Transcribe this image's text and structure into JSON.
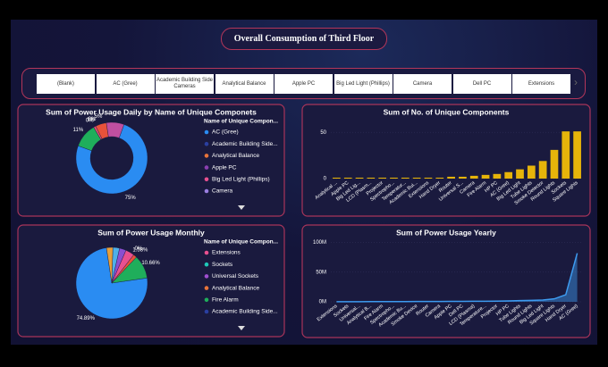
{
  "title": "Overall Consumption of Third Floor",
  "slicer": {
    "items": [
      "(Blank)",
      "AC (Gree)",
      "Academic Building Side Cameras",
      "Analytical Balance",
      "Apple PC",
      "Big Led Light (Phillips)",
      "Camera",
      "Dell PC",
      "Extensions"
    ]
  },
  "chart_data": [
    {
      "type": "donut",
      "title": "Sum of Power Usage Daily by Name of Unique Componets",
      "values": [
        75,
        11,
        0,
        1,
        0,
        5,
        8
      ],
      "value_labels": [
        "75%",
        "11%",
        "0%",
        "1%",
        "0%",
        "5%",
        null
      ],
      "colors": [
        "#2a8cf2",
        "#1fae5b",
        "#8a4fd0",
        "#e8507a",
        "#4fd0c8",
        "#e8523a",
        "#c04fa0"
      ],
      "legend_title": "Name of Unique Compon...",
      "legend": [
        {
          "name": "AC (Gree)",
          "color": "#2a8cf2"
        },
        {
          "name": "Academic Building Side...",
          "color": "#2a3fa0"
        },
        {
          "name": "Analytical Balance",
          "color": "#e8743a"
        },
        {
          "name": "Apple PC",
          "color": "#8a3fb0"
        },
        {
          "name": "Big Led Light (Phillips)",
          "color": "#e8508f"
        },
        {
          "name": "Camera",
          "color": "#9a7fe0"
        }
      ]
    },
    {
      "type": "bar",
      "title": "Sum of No. of Unique Components",
      "categories": [
        "Analytical ...",
        "Apple PC",
        "Big Led Lig...",
        "LCD (Plasm...",
        "Projector",
        "Spectropho...",
        "Temperatur...",
        "Academic Bui...",
        "Extensions",
        "Hand Dryer",
        "Router",
        "Universal S...",
        "Camera",
        "Fire Alarm",
        "HP PC",
        "AC (Gree)",
        "Big Led Light",
        "Tube Lights",
        "Smoke Detector",
        "Round Lights",
        "Sockets",
        "Square Lights"
      ],
      "values": [
        1,
        1,
        1,
        1,
        1,
        1,
        1,
        1,
        1,
        1,
        2,
        2,
        3,
        4,
        5,
        7,
        10,
        14,
        19,
        31,
        51,
        51
      ],
      "color": "#e6b40a",
      "ylim": [
        0,
        55
      ],
      "yticks": [
        0,
        50
      ]
    },
    {
      "type": "pie",
      "title": "Sum of Power Usage Monthly",
      "values": [
        74.89,
        10.66,
        1.58,
        0,
        4,
        3,
        3,
        2.87
      ],
      "value_labels": [
        "74.89%",
        "10.66%",
        "1.58%",
        "0%",
        null,
        null,
        null,
        null
      ],
      "colors": [
        "#2a8cf2",
        "#1fae5b",
        "#e8523a",
        "#4fd0c8",
        "#e8508f",
        "#8a4fd0",
        "#4fb0e8",
        "#e8a03a"
      ],
      "legend_title": "Name of Unique Compon...",
      "legend": [
        {
          "name": "Extensions",
          "color": "#e8508f"
        },
        {
          "name": "Sockets",
          "color": "#1fc8b8"
        },
        {
          "name": "Universal Sockets",
          "color": "#a04fd0"
        },
        {
          "name": "Analytical Balance",
          "color": "#e8743a"
        },
        {
          "name": "Fire Alarm",
          "color": "#1fae5b"
        },
        {
          "name": "Academic Building Side...",
          "color": "#2a3fa0"
        }
      ]
    },
    {
      "type": "area",
      "title": "Sum of Power Usage Yearly",
      "categories": [
        "Extensions",
        "Sockets",
        "Universal...",
        "Analytical B...",
        "Fire Alarm",
        "Spectropho...",
        "Academic Bu...",
        "Smoke Device",
        "Router",
        "Camera",
        "Apple PC",
        "Dell PC",
        "LCD (Plasma)",
        "Temperature...",
        "Projector",
        "HP PC",
        "Tube Lights",
        "Round Lights",
        "Big Led Light",
        "Square Lights",
        "Hand Dryer",
        "AC (Gree)"
      ],
      "values": [
        100000,
        200000,
        200000,
        300000,
        300000,
        400000,
        400000,
        500000,
        500000,
        600000,
        700000,
        800000,
        900000,
        1000000,
        1200000,
        1500000,
        2000000,
        2500000,
        3000000,
        5000000,
        12000000,
        82000000
      ],
      "color": "#3d9bf0",
      "ylim": [
        0,
        110000000
      ],
      "yticks": [
        {
          "value": 0,
          "label": "0M"
        },
        {
          "value": 50000000,
          "label": "50M"
        },
        {
          "value": 100000000,
          "label": "100M"
        }
      ]
    }
  ]
}
